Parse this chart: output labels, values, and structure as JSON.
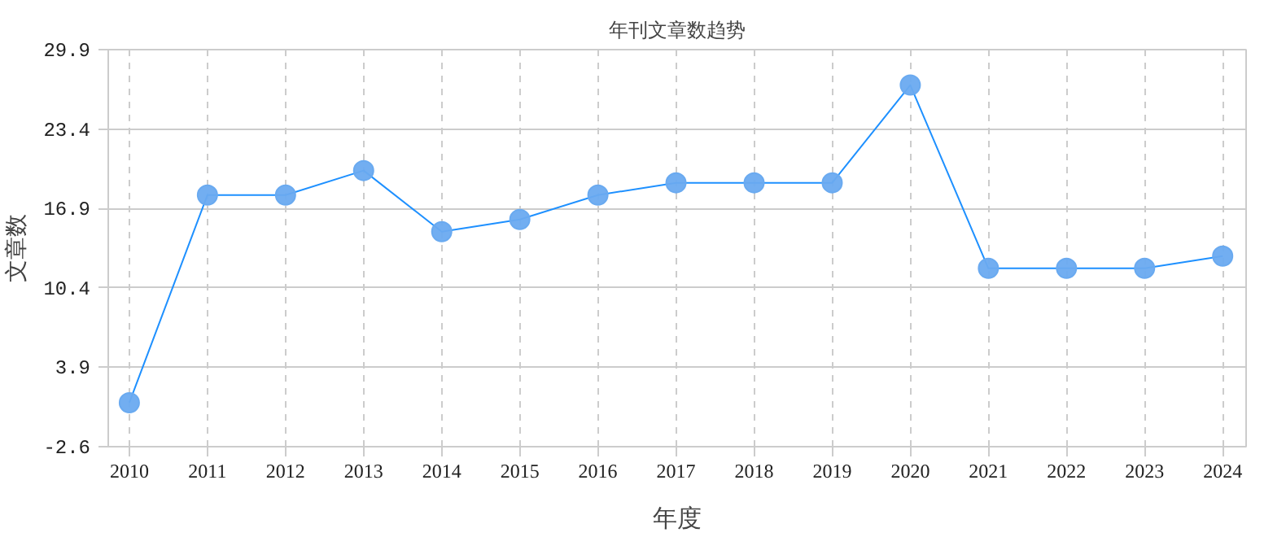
{
  "chart_data": {
    "type": "line",
    "title": "年刊文章数趋势",
    "xlabel": "年度",
    "ylabel": "文章数",
    "categories": [
      "2010",
      "2011",
      "2012",
      "2013",
      "2014",
      "2015",
      "2016",
      "2017",
      "2018",
      "2019",
      "2020",
      "2021",
      "2022",
      "2023",
      "2024"
    ],
    "series": [
      {
        "color": "#1e90ff",
        "values": [
          1,
          18,
          18,
          20,
          15,
          16,
          18,
          19,
          19,
          19,
          27,
          12,
          12,
          12,
          13
        ]
      }
    ],
    "ylim": [
      -2.6,
      29.9
    ],
    "yticks": [
      -2.6,
      3.9,
      10.4,
      16.9,
      23.4,
      29.9
    ],
    "grid": true,
    "marker": "circle",
    "line_style": "solid"
  }
}
